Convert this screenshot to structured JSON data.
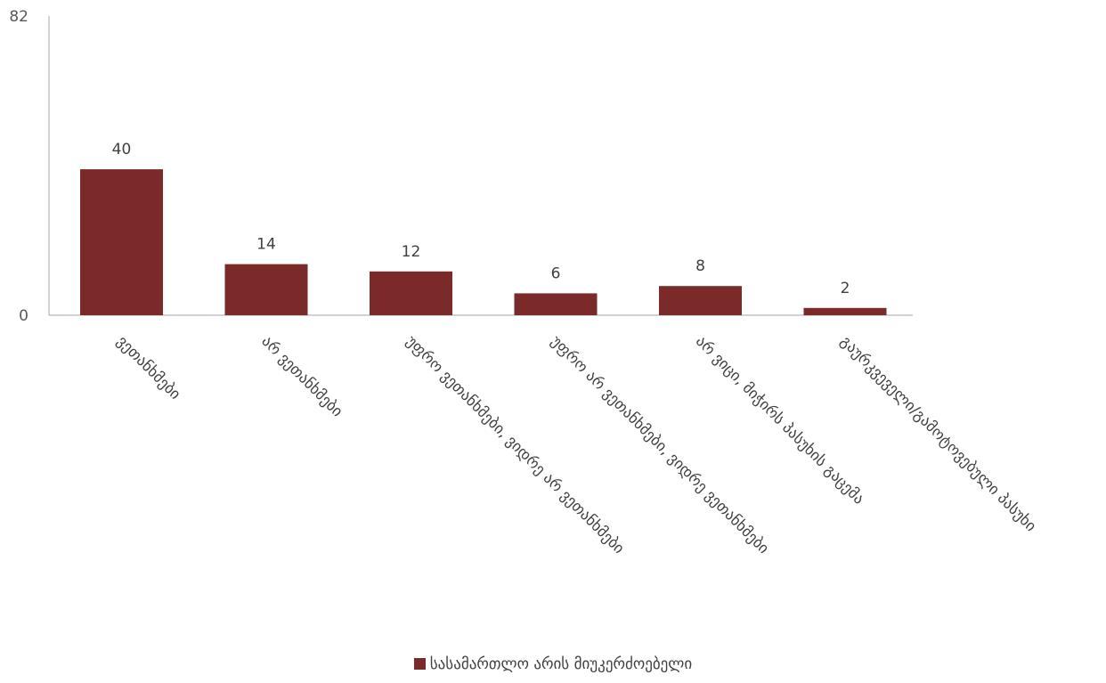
{
  "colors": {
    "bar": "#7b2a2a",
    "axis": "#a6a6a6"
  },
  "chart_data": {
    "type": "bar",
    "categories": [
      "ვეთანხმები",
      "არ  ვეთანხმები",
      "უფრო ვეთანხმები, ვიდრე არ ვეთანხმები",
      "უფრო არ ვეთანხმები, ვიდრე   ვეთანხმები",
      "არ ვიცი,  მიჭირს პასუხის   გაცემა",
      "გაურკვეველი/გამოტოვებული პასუხი"
    ],
    "series": [
      {
        "name": "სასამართლო არის მიუკერძოებელი",
        "values": [
          40,
          14,
          12,
          6,
          8,
          2
        ]
      }
    ],
    "ylim": [
      0,
      82
    ],
    "yticks": [
      "0",
      "82"
    ],
    "grid": false,
    "legend": "bottom"
  }
}
